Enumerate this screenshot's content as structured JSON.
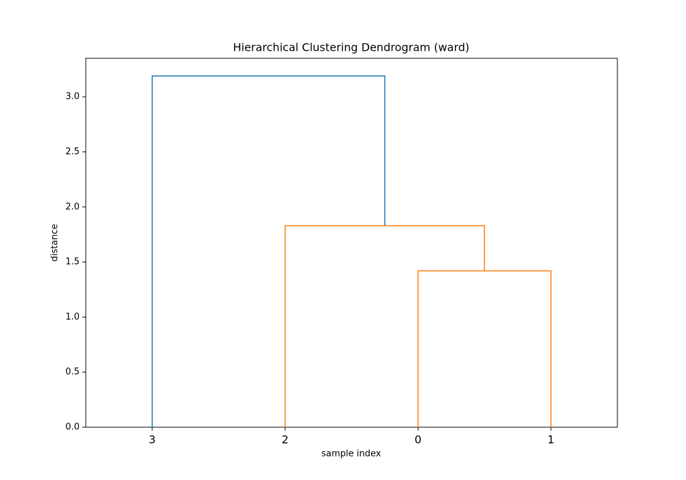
{
  "chart_data": {
    "type": "dendrogram",
    "title": "Hierarchical Clustering Dendrogram (ward)",
    "x_label": "sample index",
    "y_label": "distance",
    "ylim": [
      0,
      3.35
    ],
    "yticks": [
      {
        "value": 0,
        "label": "0.0"
      },
      0.5,
      {
        "value": 1,
        "label": "1.0"
      },
      1.5,
      {
        "value": 2,
        "label": "2.0"
      },
      2.5,
      {
        "value": 3,
        "label": "3.0"
      }
    ],
    "tree": {
      "height": 3.19,
      "color": "#1f77b4",
      "children": [
        {
          "label": "3"
        },
        {
          "height": 1.83,
          "color": "#ff7f0e",
          "children": [
            {
              "label": "2"
            },
            {
              "height": 1.42,
              "color": "#ff7f0e",
              "children": [
                {
                  "label": "0"
                },
                {
                  "label": "1"
                }
              ]
            }
          ]
        }
      ]
    }
  }
}
